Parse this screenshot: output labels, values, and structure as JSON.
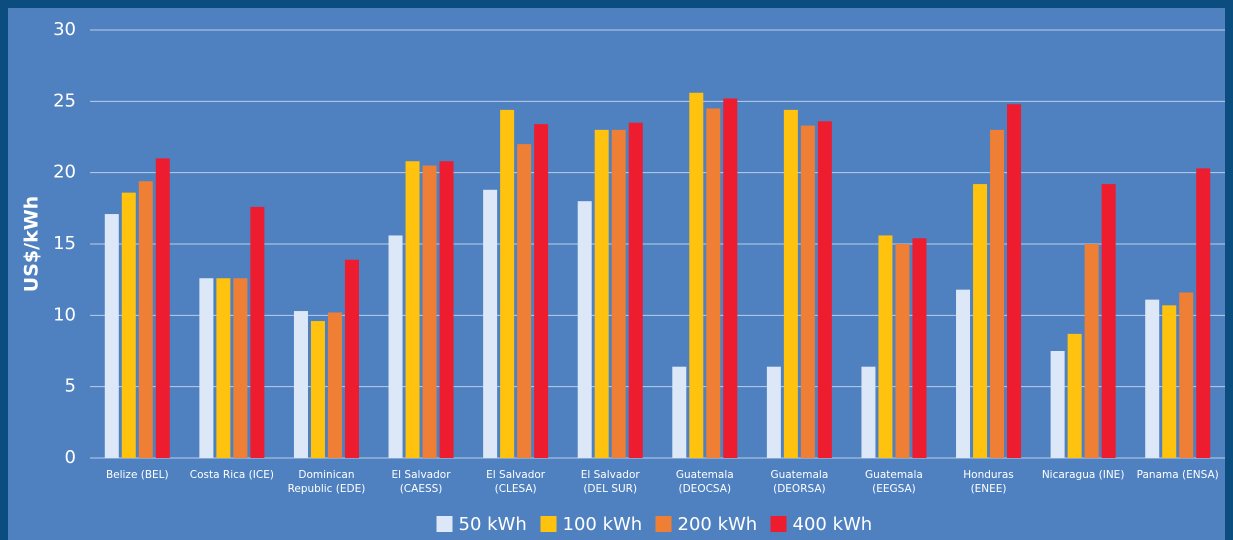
{
  "chart_data": {
    "type": "bar",
    "y_label": "US$/kWh",
    "categories": [
      "Belize (BEL)",
      "Costa Rica (ICE)",
      "Dominican\nRepublic (EDE)",
      "El Salvador\n(CAESS)",
      "El Salvador\n(CLESA)",
      "El Salvador\n(DEL SUR)",
      "Guatemala\n(DEOCSA)",
      "Guatemala\n(DEORSA)",
      "Guatemala\n(EEGSA)",
      "Honduras\n(ENEE)",
      "Nicaragua (INE)",
      "Panama (ENSA)"
    ],
    "series": [
      {
        "name": "50 kWh",
        "color": "#dce8f7",
        "values": [
          17.1,
          12.6,
          10.3,
          15.6,
          18.8,
          18.0,
          6.4,
          6.4,
          6.4,
          11.8,
          7.5,
          11.1
        ]
      },
      {
        "name": "100 kWh",
        "color": "#ffc20e",
        "values": [
          18.6,
          12.6,
          9.6,
          20.8,
          24.4,
          23.0,
          25.6,
          24.4,
          15.6,
          19.2,
          8.7,
          10.7
        ]
      },
      {
        "name": "200 kWh",
        "color": "#ef7f34",
        "values": [
          19.4,
          12.6,
          10.2,
          20.5,
          22.0,
          23.0,
          24.5,
          23.3,
          15.0,
          23.0,
          15.0,
          11.6
        ]
      },
      {
        "name": "400 kWh",
        "color": "#ed1c2e",
        "values": [
          21.0,
          17.6,
          13.9,
          20.8,
          23.4,
          23.5,
          25.2,
          23.6,
          15.4,
          24.8,
          19.2,
          20.3
        ]
      }
    ],
    "ylim": [
      0,
      30
    ],
    "yticks": [
      0,
      5,
      10,
      15,
      20,
      25,
      30
    ],
    "grid": true
  }
}
